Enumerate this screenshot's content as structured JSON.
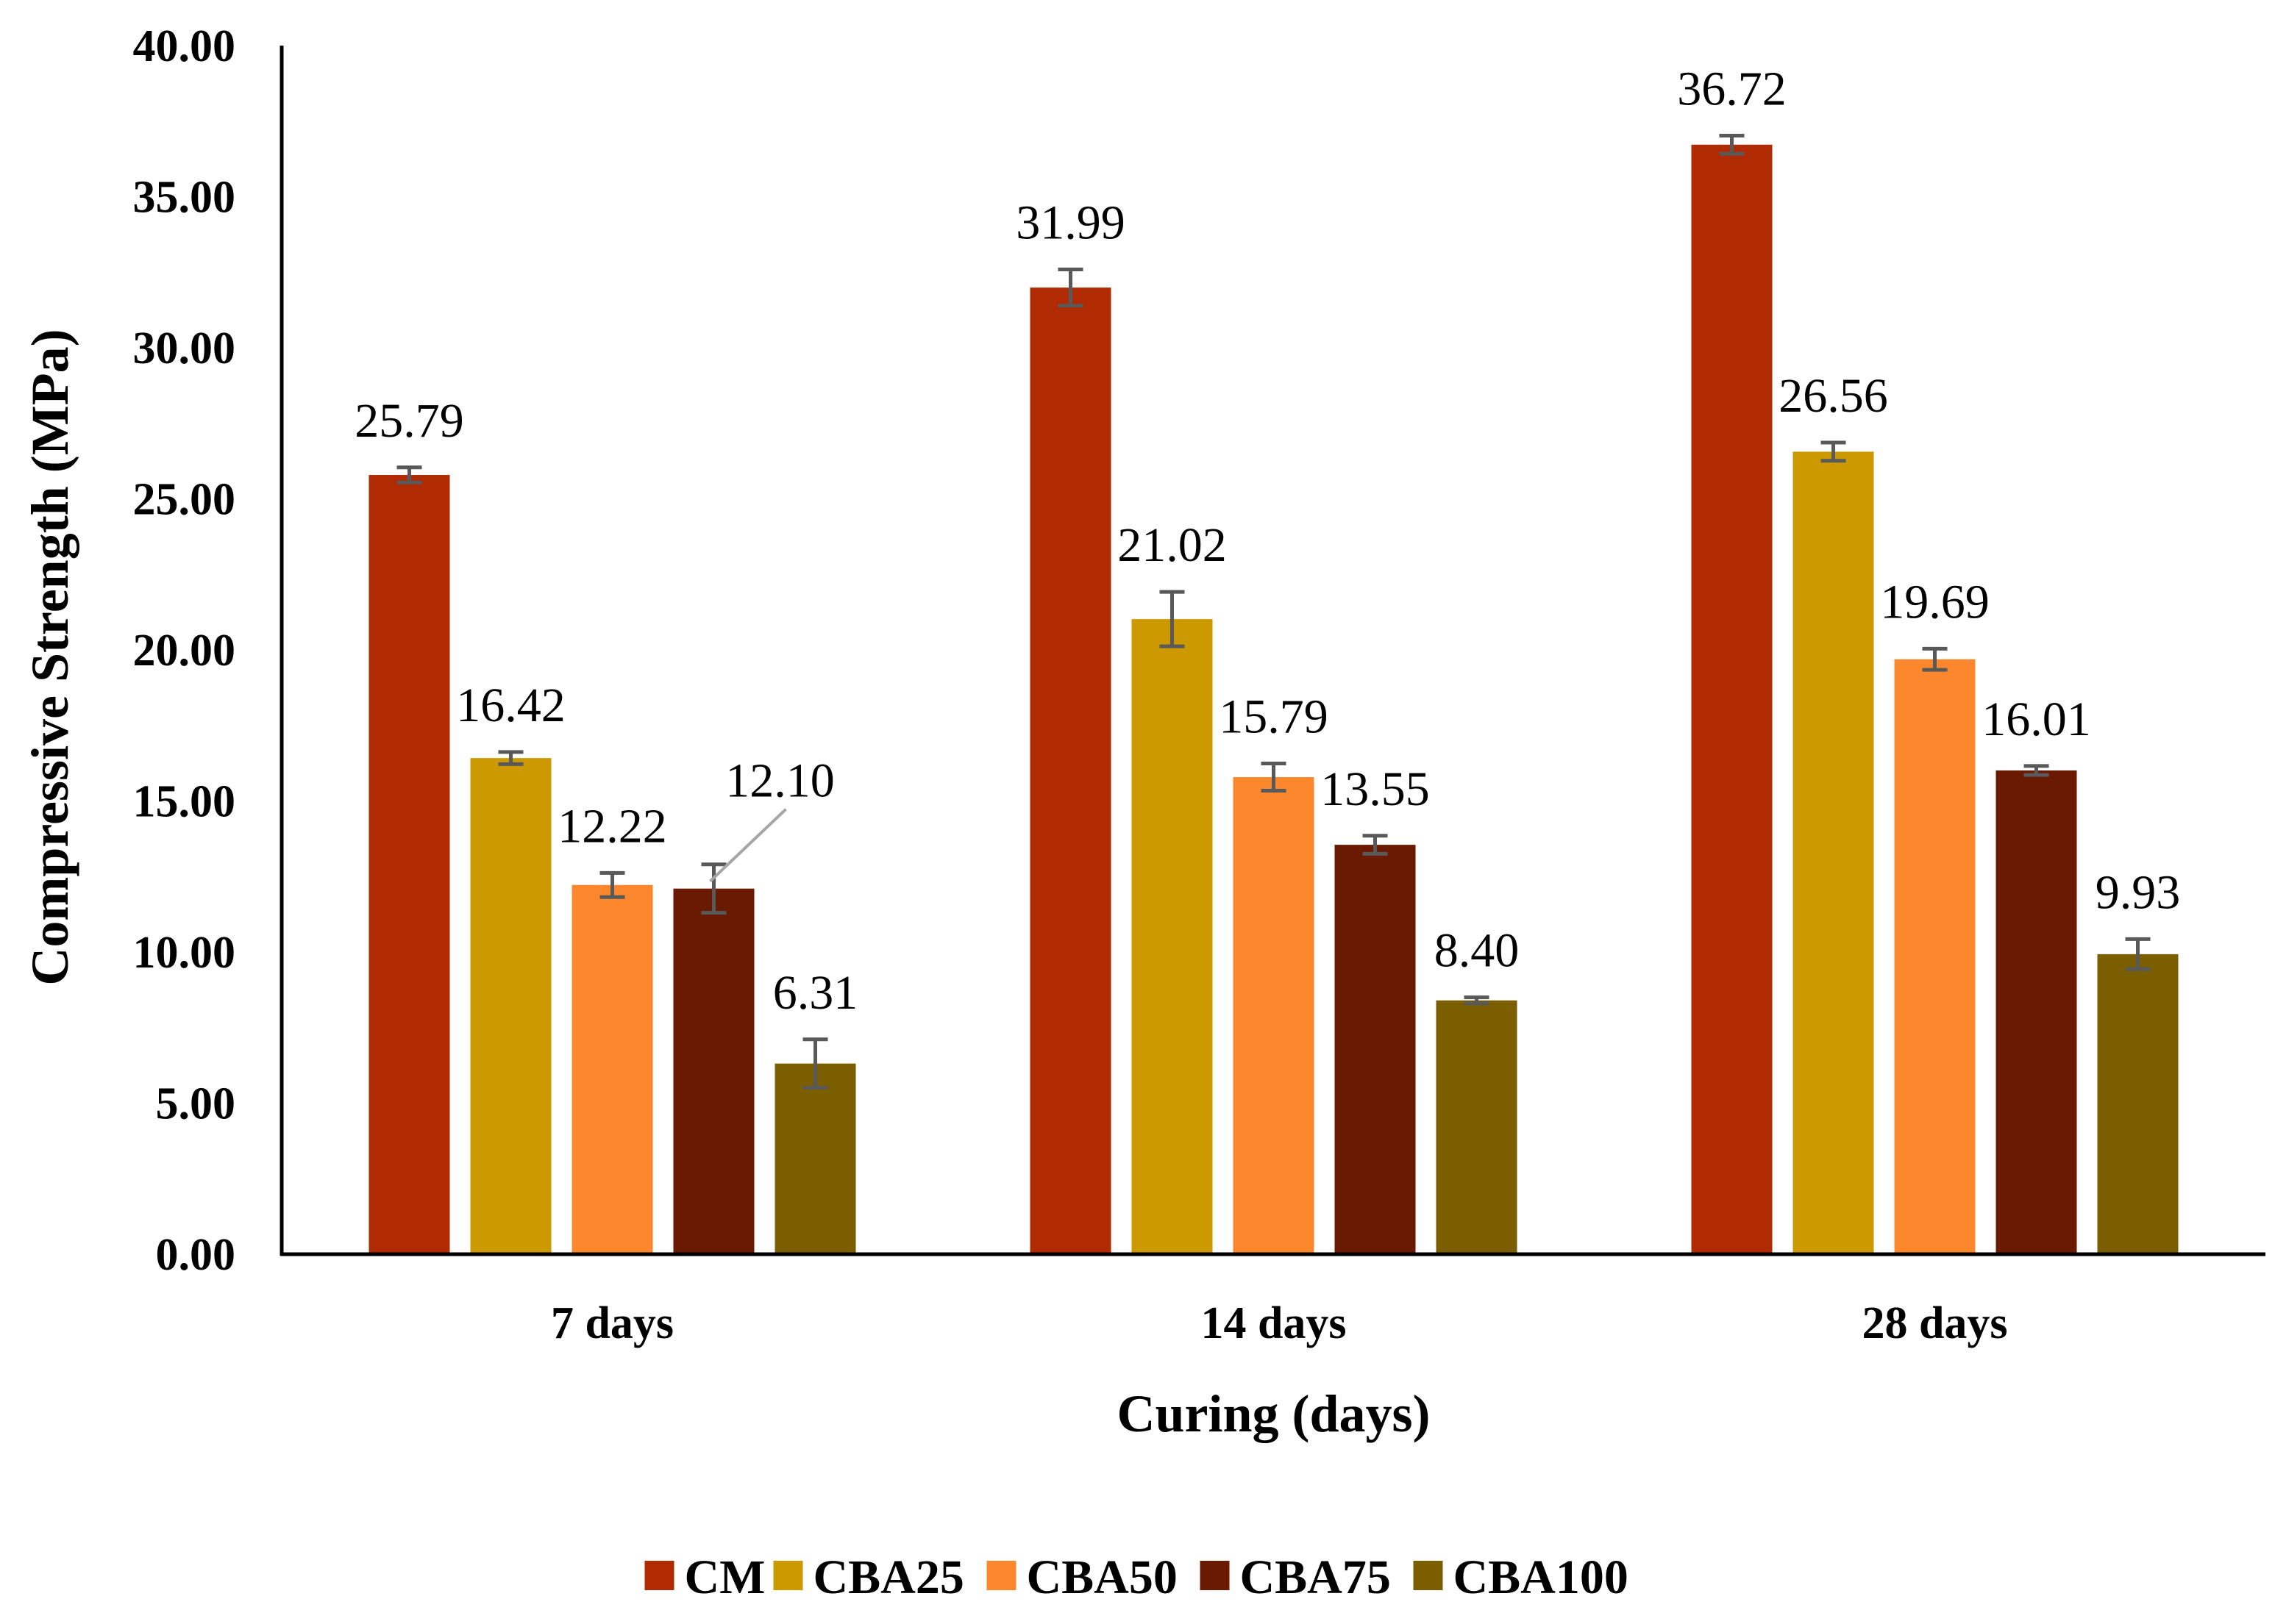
{
  "chart_data": {
    "type": "bar",
    "title": "",
    "xlabel": "Curing (days)",
    "ylabel": "Compressive Strength (MPa)",
    "ylim": [
      0,
      40
    ],
    "yticks": [
      "0.00",
      "5.00",
      "10.00",
      "15.00",
      "20.00",
      "25.00",
      "30.00",
      "35.00",
      "40.00"
    ],
    "grid": false,
    "legend_position": "bottom",
    "categories": [
      "7 days",
      "14 days",
      "28 days"
    ],
    "series": [
      {
        "name": "CM",
        "color": "#b02a02",
        "values": [
          25.79,
          31.99,
          36.72
        ],
        "labels": [
          "25.79",
          "31.99",
          "36.72"
        ],
        "errors": [
          0.25,
          0.6,
          0.3
        ]
      },
      {
        "name": "CBA25",
        "color": "#cc9a00",
        "values": [
          16.42,
          21.02,
          26.56
        ],
        "labels": [
          "16.42",
          "21.02",
          "26.56"
        ],
        "errors": [
          0.2,
          0.9,
          0.3
        ]
      },
      {
        "name": "CBA50",
        "color": "#fd872c",
        "values": [
          12.22,
          15.79,
          19.69
        ],
        "labels": [
          "12.22",
          "15.79",
          "19.69"
        ],
        "errors": [
          0.4,
          0.45,
          0.35
        ]
      },
      {
        "name": "CBA75",
        "color": "#6b1a02",
        "values": [
          12.1,
          13.55,
          16.01
        ],
        "labels": [
          "12.10",
          "13.55",
          "16.01"
        ],
        "errors": [
          0.8,
          0.3,
          0.15
        ]
      },
      {
        "name": "CBA100",
        "color": "#7a5e00",
        "values": [
          6.31,
          8.4,
          9.93
        ],
        "labels": [
          "6.31",
          "8.40",
          "9.93"
        ],
        "errors": [
          0.8,
          0.1,
          0.5
        ]
      }
    ]
  }
}
